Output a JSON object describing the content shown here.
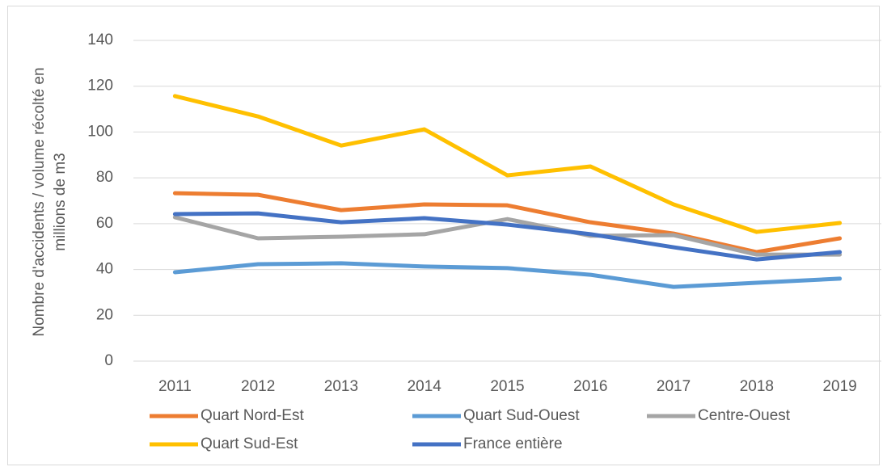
{
  "chart_data": {
    "type": "line",
    "y_label": [
      "Nombre d'accidents / volume récolté en",
      "millions de m3"
    ],
    "categories": [
      "2011",
      "2012",
      "2013",
      "2014",
      "2015",
      "2016",
      "2017",
      "2018",
      "2019"
    ],
    "series": [
      {
        "name": "Quart Nord-Est",
        "color": "#ED7D31",
        "values": [
          73.3,
          72.6,
          65.9,
          68.4,
          68.0,
          60.6,
          55.7,
          47.6,
          53.6
        ]
      },
      {
        "name": "Quart Sud-Ouest",
        "color": "#5B9BD5",
        "values": [
          38.8,
          42.3,
          42.7,
          41.3,
          40.6,
          37.7,
          32.4,
          34.2,
          36.0
        ]
      },
      {
        "name": "Centre-Ouest",
        "color": "#A5A5A5",
        "values": [
          62.8,
          53.6,
          54.3,
          55.4,
          62.0,
          54.7,
          55.0,
          46.5,
          46.5
        ]
      },
      {
        "name": "Quart Sud-Est",
        "color": "#FFC000",
        "values": [
          115.7,
          106.8,
          94.1,
          101.2,
          81.1,
          85.0,
          68.4,
          56.4,
          60.3
        ]
      },
      {
        "name": "France entière",
        "color": "#4472C4",
        "values": [
          64.2,
          64.5,
          60.6,
          62.4,
          59.6,
          55.4,
          49.7,
          44.4,
          47.6
        ]
      }
    ],
    "ylim": [
      0,
      140
    ],
    "yticks": [
      0,
      20,
      40,
      60,
      80,
      100,
      120,
      140
    ],
    "grid": true
  }
}
